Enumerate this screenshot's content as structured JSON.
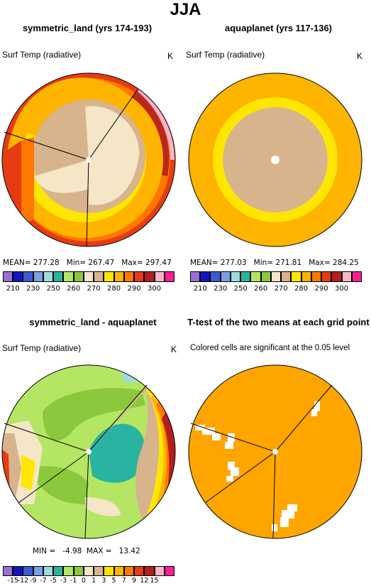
{
  "header": {
    "title": "JJA"
  },
  "panels": {
    "top_left": {
      "title": "symmetric_land (yrs 174-193)",
      "variable": "Surf Temp (radiative)",
      "units": "K",
      "stats": {
        "mean_label": "MEAN=",
        "mean": "277.28",
        "min_label": "Min=",
        "min": "267.47",
        "max_label": "Max=",
        "max": "297.47"
      }
    },
    "top_right": {
      "title": "aquaplanet (yrs 117-136)",
      "variable": "Surf Temp (radiative)",
      "units": "K",
      "stats": {
        "mean_label": "MEAN=",
        "mean": "277.03",
        "min_label": "Min=",
        "min": "271.81",
        "max_label": "Max=",
        "max": "284.25"
      }
    },
    "bottom_left": {
      "title": "symmetric_land - aquaplanet",
      "variable": "Surf Temp (radiative)",
      "units": "K",
      "stats": {
        "min_label": "MIN =",
        "min": "-4.98",
        "max_label": "MAX =",
        "max": "13.42"
      }
    },
    "bottom_right": {
      "title": "T-test of the two means at each grid point",
      "note": "Colored cells are significant at the 0.05 level"
    }
  },
  "colors": {
    "abs_scale": [
      "#9b6fd6",
      "#1414c8",
      "#3c5ad2",
      "#78a0e6",
      "#9edcdc",
      "#28b4a0",
      "#b4e664",
      "#8cc83c",
      "#f5e6c8",
      "#d7b48c",
      "#ffe600",
      "#ffb400",
      "#ff7800",
      "#e63c14",
      "#b41e1e",
      "#ffb4c8",
      "#ff1e96"
    ],
    "diff_scale": [
      "#9b6fd6",
      "#1414c8",
      "#3c5ad2",
      "#78a0e6",
      "#9edcdc",
      "#28b4a0",
      "#b4e664",
      "#8cc83c",
      "#f5e6c8",
      "#d7b48c",
      "#ffe600",
      "#ffb400",
      "#ff7800",
      "#e63c14",
      "#b41e1e",
      "#ffb4c8",
      "#ff1e96"
    ],
    "significant": "#ffa500"
  },
  "chart_data": [
    {
      "type": "heatmap",
      "title": "symmetric_land (yrs 174-193)",
      "projection": "polar stereographic",
      "variable": "Surf Temp (radiative)",
      "units": "K",
      "colorbar_ticks": [
        "210",
        "230",
        "250",
        "260",
        "270",
        "280",
        "290",
        "300"
      ],
      "stats": {
        "mean": 277.28,
        "min": 267.47,
        "max": 297.47
      }
    },
    {
      "type": "heatmap",
      "title": "aquaplanet (yrs 117-136)",
      "projection": "polar stereographic",
      "variable": "Surf Temp (radiative)",
      "units": "K",
      "colorbar_ticks": [
        "210",
        "230",
        "250",
        "260",
        "270",
        "280",
        "290",
        "300"
      ],
      "stats": {
        "mean": 277.03,
        "min": 271.81,
        "max": 284.25
      }
    },
    {
      "type": "heatmap",
      "title": "symmetric_land - aquaplanet",
      "projection": "polar stereographic",
      "variable": "Surf Temp (radiative)",
      "units": "K",
      "colorbar_ticks": [
        "-15",
        "-12",
        "-9",
        "-7",
        "-5",
        "-3",
        "-1",
        "0",
        "1",
        "3",
        "5",
        "7",
        "9",
        "12",
        "15"
      ],
      "stats": {
        "min": -4.98,
        "max": 13.42
      }
    },
    {
      "type": "heatmap",
      "title": "T-test of the two means at each grid point",
      "projection": "polar stereographic",
      "note": "Colored cells are significant at the 0.05 level"
    }
  ]
}
